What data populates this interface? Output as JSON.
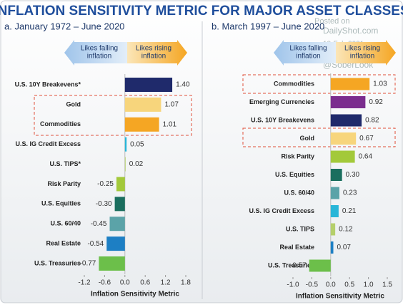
{
  "header": {
    "title": "INFLATION SENSITIVITY METRIC FOR MAJOR ASSET CLASSES"
  },
  "watermark": [
    "Posted on",
    "DailyShot.com",
    "18-Feb-2021",
    "@SoberLook"
  ],
  "chart_data": [
    {
      "type": "bar",
      "orientation": "horizontal",
      "subtitle": "a. January 1972 – June 2020",
      "arrows": {
        "left": [
          "Likes falling",
          "inflation"
        ],
        "right": [
          "Likes rising",
          "inflation"
        ]
      },
      "x_label": "Inflation Sensitivity Metric",
      "categories": [
        "U.S. 10Y Breakevens*",
        "Gold",
        "Commodities",
        "U.S. IG Credit Excess",
        "U.S. TIPS*",
        "Risk Parity",
        "U.S. Equities",
        "U.S. 60/40",
        "Real Estate",
        "U.S. Treasuries"
      ],
      "values": [
        1.4,
        1.07,
        1.01,
        0.05,
        0.02,
        -0.25,
        -0.3,
        -0.45,
        -0.54,
        -0.77
      ],
      "value_labels": [
        "1.40",
        "1.07",
        "1.01",
        "0.05",
        "0.02",
        "-0.25",
        "-0.30",
        "-0.45",
        "-0.54",
        "-0.77"
      ],
      "colors": [
        "#1f2a6b",
        "#f7d57c",
        "#f5a623",
        "#29b6d8",
        "#b5cf6b",
        "#a3c93a",
        "#1a6e5e",
        "#5ba3a8",
        "#1d7fc4",
        "#6cbf4a"
      ],
      "xlim": [
        -1.2,
        1.8
      ],
      "xticks": [
        -1.2,
        -0.6,
        {
          "value": 0,
          "label": "0.0"
        },
        0.6,
        1.2,
        1.8
      ]
    },
    {
      "type": "bar",
      "orientation": "horizontal",
      "subtitle": "b. March 1997 – June 2020",
      "arrows": {
        "left": [
          "Likes falling",
          "inflation"
        ],
        "right": [
          "Likes rising",
          "inflation"
        ]
      },
      "x_label": "Inflation Sensitivity Metric",
      "categories": [
        "Commodities",
        "Emerging Currencies",
        "U.S. 10Y Breakevens",
        "Gold",
        "Risk Parity",
        "U.S. Equities",
        "U.S. 60/40",
        "U.S. IG Credit Excess",
        "U.S. TIPS",
        "Real Estate",
        "U.S. Treasuries"
      ],
      "values": [
        1.03,
        0.92,
        0.82,
        0.67,
        0.64,
        0.3,
        0.23,
        0.21,
        0.12,
        0.07,
        -0.57
      ],
      "value_labels": [
        "1.03",
        "0.92",
        "0.82",
        "0.67",
        "0.64",
        "0.30",
        "0.23",
        "0.21",
        "0.12",
        "0.07",
        "-0.57"
      ],
      "colors": [
        "#f5a623",
        "#7b2d8e",
        "#1f2a6b",
        "#f7d57c",
        "#a3c93a",
        "#1a6e5e",
        "#5ba3a8",
        "#29b6d8",
        "#b5cf6b",
        "#1d7fc4",
        "#6cbf4a"
      ],
      "xlim": [
        -1.0,
        1.5
      ],
      "xticks": [
        {
          "value": -1,
          "label": "-1.0"
        },
        -0.5,
        {
          "value": 0,
          "label": "0.0"
        },
        0.5,
        {
          "value": 1,
          "label": "1.0"
        },
        1.5
      ]
    }
  ]
}
